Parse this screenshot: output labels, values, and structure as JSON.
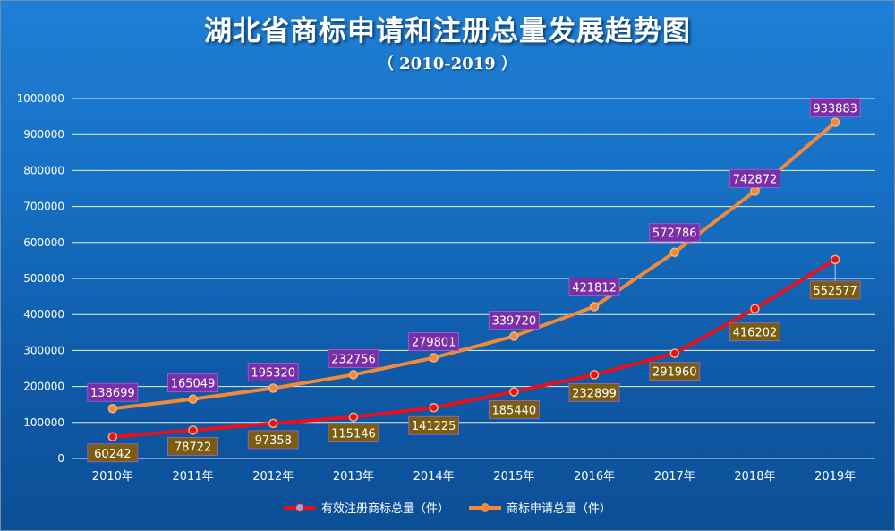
{
  "title": "湖北省商标申请和注册总量发展趋势图",
  "subtitle": "（ 2010-2019 ）",
  "colors": {
    "registered": "#e8101c",
    "applications": "#f08a3a",
    "label_purple": "#7a2fa8",
    "label_gold": "#7a5d10",
    "grid": "#ffffff"
  },
  "legend": {
    "registered": "有效注册商标总量（件）",
    "applications": "商标申请总量（件）"
  },
  "chart_data": {
    "type": "line",
    "x": [
      "2010年",
      "2011年",
      "2012年",
      "2013年",
      "2014年",
      "2015年",
      "2016年",
      "2017年",
      "2018年",
      "2019年"
    ],
    "ylim": [
      0,
      1000000
    ],
    "yticks": [
      0,
      100000,
      200000,
      300000,
      400000,
      500000,
      600000,
      700000,
      800000,
      900000,
      1000000
    ],
    "grid": true,
    "legend_position": "bottom",
    "series": [
      {
        "key": "registered",
        "name": "有效注册商标总量（件）",
        "values": [
          60242,
          78722,
          97358,
          115146,
          141225,
          185440,
          232899,
          291960,
          416202,
          552577
        ]
      },
      {
        "key": "applications",
        "name": "商标申请总量（件）",
        "values": [
          138699,
          165049,
          195320,
          232756,
          279801,
          339720,
          421812,
          572786,
          742872,
          933883
        ]
      }
    ]
  }
}
